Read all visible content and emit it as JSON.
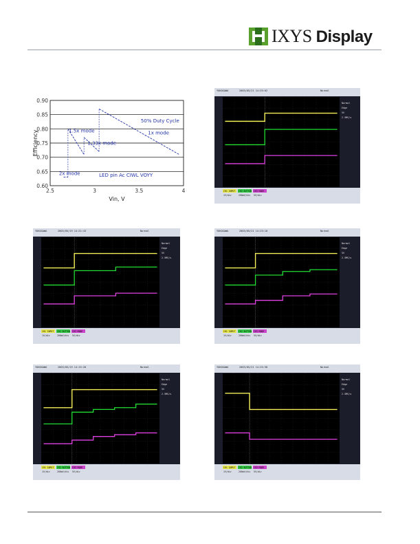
{
  "header": {
    "logo_text": "IXYS",
    "logo_suffix": "Display"
  },
  "chart_data": {
    "type": "line",
    "ylabel": "Efficiency",
    "xlabel": "Vin, V",
    "ylim": [
      0.6,
      0.9
    ],
    "xlim": [
      2.5,
      4.0
    ],
    "y_ticks": [
      "0.90",
      "0.85",
      "0.80",
      "0.75",
      "0.70",
      "0.65",
      "0.60"
    ],
    "x_ticks": [
      "2.5",
      "3",
      "3.5",
      "4"
    ],
    "annotations": [
      "1.5x mode",
      "1.33x mode",
      "50% Duty Cycle",
      "1x mode",
      "2x mode",
      "LED pin Ac CIWL VOYY"
    ],
    "series": [
      {
        "x": [
          2.65,
          2.7
        ],
        "y": [
          0.63,
          0.63
        ]
      },
      {
        "x": [
          2.7,
          2.88
        ],
        "y": [
          0.8,
          0.71
        ]
      },
      {
        "x": [
          2.88,
          3.05
        ],
        "y": [
          0.77,
          0.72
        ]
      },
      {
        "x": [
          3.05,
          3.95
        ],
        "y": [
          0.87,
          0.71
        ]
      }
    ]
  },
  "scopes": [
    {
      "brand": "YOKOGAWA",
      "date": "2003/05/21 14:25:02",
      "mode": "Normal",
      "ch_labels": [
        "CH1 INPUT",
        "CH2 BUTTON",
        "CH3 MODE"
      ],
      "ch_values": [
        "1V/div",
        "200mV/div",
        "5V/div"
      ],
      "right_info": [
        "Normal",
        "Edge",
        "5V",
        "2.5MS/s"
      ]
    },
    {
      "brand": "YOKOGAWA",
      "date": "2003/05/19 14:21:43",
      "mode": "Normal",
      "ch_labels": [
        "CH1 INPUT",
        "CH2 BUTTON",
        "CH3 MODE"
      ],
      "ch_values": [
        "1V/div",
        "200mV/div",
        "5V/div"
      ],
      "right_info": [
        "Normal",
        "Edge",
        "5V",
        "2.5MS/s"
      ]
    },
    {
      "brand": "YOKOGAWA",
      "date": "2003/05/21 14:23:10",
      "mode": "Normal",
      "ch_labels": [
        "CH1 INPUT",
        "CH2 BUTTON",
        "CH3 MODE"
      ],
      "ch_values": [
        "1V/div",
        "200mV/div",
        "5V/div"
      ],
      "right_info": [
        "Normal",
        "Edge",
        "5V",
        "2.5MS/s"
      ]
    },
    {
      "brand": "YOKOGAWA",
      "date": "2003/05/19 14:15:20",
      "mode": "Normal",
      "ch_labels": [
        "CH1 INPUT",
        "CH2 BUTTON",
        "CH3 MODE"
      ],
      "ch_values": [
        "1V/div",
        "200mV/div",
        "5V/div"
      ],
      "right_info": [
        "Normal",
        "Edge",
        "5V",
        "2.5MS/s"
      ]
    },
    {
      "brand": "YOKOGAWA",
      "date": "2003/05/21 14:25:58",
      "mode": "Normal",
      "ch_labels": [
        "CH1 INPUT",
        "CH2 BUTTON",
        "CH3 MODE"
      ],
      "ch_values": [
        "1V/div",
        "200mV/div",
        "5V/div"
      ],
      "right_info": [
        "Normal",
        "Edge",
        "5V",
        "2.5MS/s"
      ]
    }
  ]
}
